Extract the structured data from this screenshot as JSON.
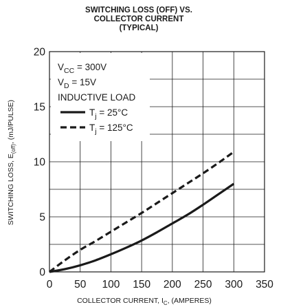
{
  "chart_data": {
    "type": "line",
    "title": [
      "SWITCHING LOSS (OFF) VS.",
      "COLLECTOR CURRENT",
      "(TYPICAL)"
    ],
    "xlabel": {
      "main": "COLLECTOR CURRENT, I",
      "sub": "C",
      "rest": ", (AMPERES)"
    },
    "ylabel": {
      "main": "SWITCHING LOSS, E",
      "sub": "(off)",
      "rest": ", (mJ/PULSE)"
    },
    "xlim": [
      0,
      350
    ],
    "ylim": [
      0,
      20
    ],
    "x_ticks": [
      0,
      50,
      100,
      150,
      200,
      250,
      300,
      350
    ],
    "y_ticks": [
      0,
      5,
      10,
      15,
      20
    ],
    "grid": true,
    "conditions": [
      {
        "main": "V",
        "sub": "CC",
        "rest": " = 300V"
      },
      {
        "main": "V",
        "sub": "D",
        "rest": " = 15V"
      },
      {
        "main": "INDUCTIVE LOAD",
        "sub": "",
        "rest": ""
      }
    ],
    "legend_position": "top-left",
    "series": [
      {
        "name": {
          "main": "T",
          "sub": "j",
          "rest": " = 25°C"
        },
        "style": "solid",
        "color": "#1a1a1a",
        "x": [
          0,
          25,
          50,
          75,
          100,
          125,
          150,
          175,
          200,
          225,
          250,
          275,
          300
        ],
        "y": [
          0,
          0.25,
          0.6,
          1.05,
          1.6,
          2.2,
          2.85,
          3.6,
          4.4,
          5.2,
          6.1,
          7.05,
          8.0
        ]
      },
      {
        "name": {
          "main": "T",
          "sub": "j",
          "rest": " = 125°C"
        },
        "style": "dashed",
        "color": "#1a1a1a",
        "x": [
          0,
          25,
          50,
          75,
          100,
          125,
          150,
          175,
          200,
          225,
          250,
          275,
          300
        ],
        "y": [
          0,
          1.05,
          2.0,
          2.8,
          3.65,
          4.5,
          5.35,
          6.25,
          7.15,
          8.05,
          8.95,
          9.9,
          10.9
        ]
      }
    ]
  }
}
